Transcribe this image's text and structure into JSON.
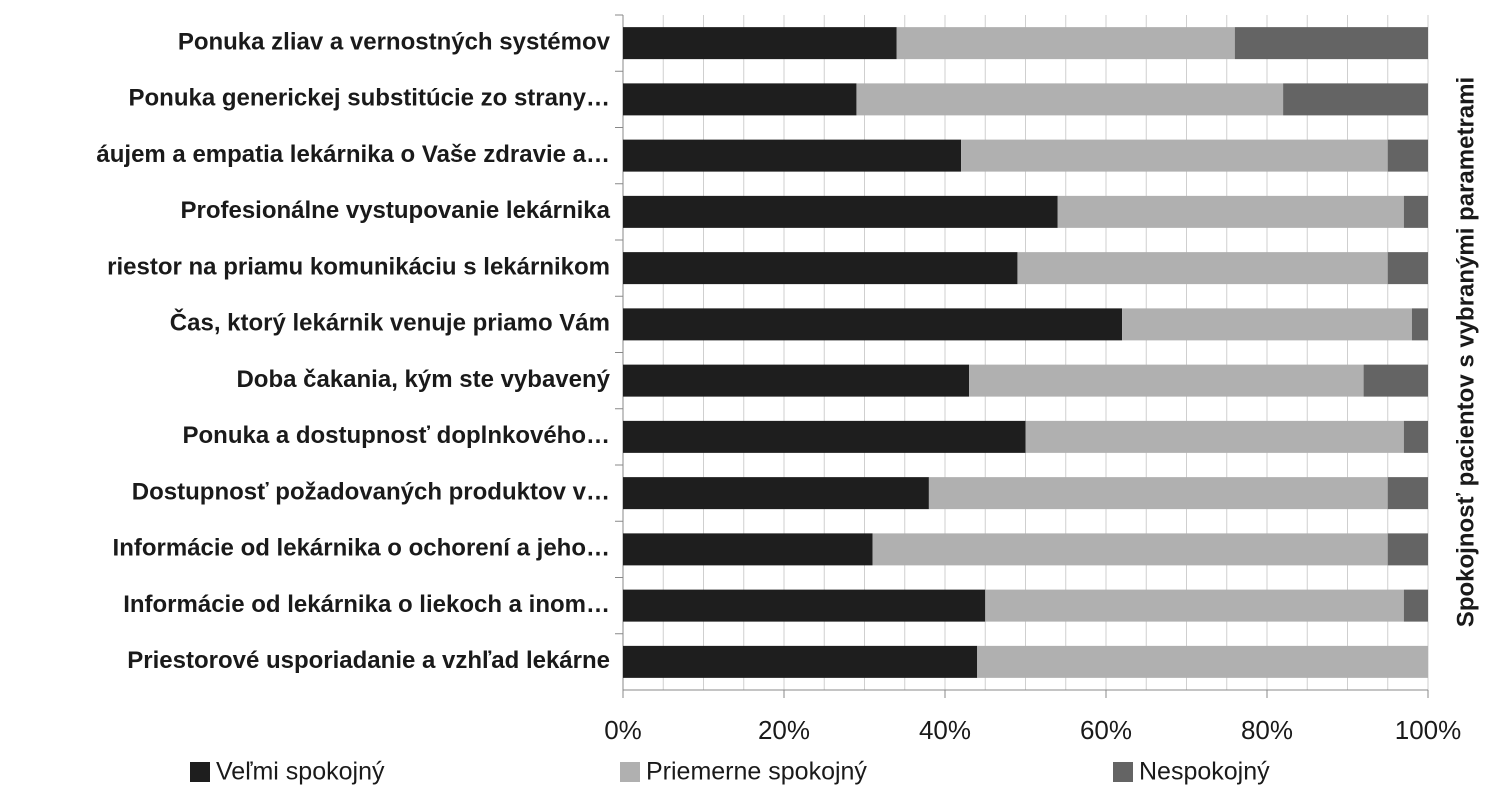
{
  "chart_data": {
    "type": "stacked-bar-horizontal",
    "y_axis_title": "Spokojnosť pacientov s vybranými parametrami",
    "categories": [
      "Ponuka zliav a vernostných systémov",
      "Ponuka generickej substitúcie zo strany…",
      "áujem a empatia lekárnika o Vaše zdravie a…",
      "Profesionálne vystupovanie lekárnika",
      "riestor na priamu komunikáciu s lekárnikom",
      "Čas, ktorý lekárnik venuje priamo Vám",
      "Doba čakania, kým ste vybavený",
      "Ponuka a dostupnosť doplnkového…",
      "Dostupnosť požadovaných produktov v…",
      "Informácie od lekárnika o ochorení a jeho…",
      "Informácie od lekárnika o liekoch a inom…",
      "Priestorové usporiadanie a vzhľad lekárne"
    ],
    "series": [
      {
        "name": "Veľmi spokojný",
        "color": "#1e1e1e",
        "values": [
          34,
          29,
          42,
          54,
          49,
          62,
          43,
          50,
          38,
          31,
          45,
          44
        ]
      },
      {
        "name": "Priemerne spokojný",
        "color": "#b0b0b0",
        "values": [
          42,
          53,
          53,
          43,
          46,
          36,
          49,
          47,
          57,
          64,
          52,
          56
        ]
      },
      {
        "name": "Nespokojný",
        "color": "#646464",
        "values": [
          24,
          18,
          5,
          3,
          5,
          2,
          8,
          3,
          5,
          5,
          3,
          0
        ]
      }
    ],
    "xlim": [
      0,
      100
    ],
    "xticks": [
      {
        "value": 0,
        "label": "0%"
      },
      {
        "value": 20,
        "label": "20%"
      },
      {
        "value": 40,
        "label": "40%"
      },
      {
        "value": 60,
        "label": "60%"
      },
      {
        "value": 80,
        "label": "80%"
      },
      {
        "value": 100,
        "label": "100%"
      }
    ],
    "x_minor_gridlines": [
      5,
      10,
      15,
      25,
      30,
      35,
      45,
      50,
      55,
      65,
      70,
      75,
      85,
      90,
      95
    ],
    "grid": true,
    "legend": "bottom"
  }
}
